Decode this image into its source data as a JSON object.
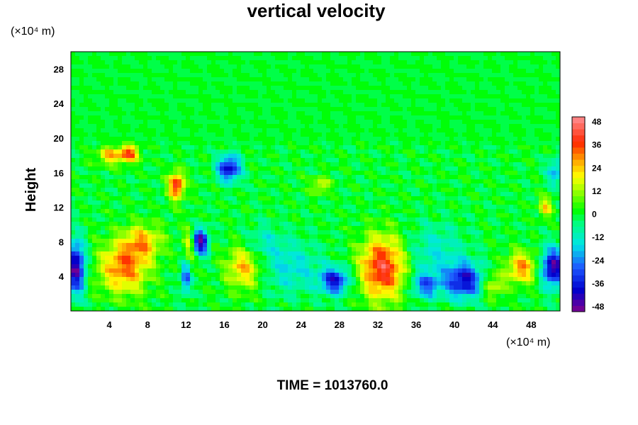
{
  "chart_data": {
    "type": "heatmap",
    "title": "vertical velocity",
    "ylabel": "Height",
    "x_unit": "(×10⁴ m)",
    "y_unit": "(×10⁴ m)",
    "x_ticks": [
      4,
      8,
      12,
      16,
      20,
      24,
      28,
      32,
      36,
      40,
      44,
      48
    ],
    "y_ticks": [
      4,
      8,
      12,
      16,
      20,
      24,
      28
    ],
    "xlim": [
      0,
      51
    ],
    "ylim": [
      0,
      30
    ],
    "colorbar": {
      "ticks": [
        48,
        36,
        24,
        12,
        0,
        -12,
        -24,
        -36,
        -48
      ],
      "range": [
        -48,
        48
      ],
      "levels": 32
    },
    "grid": false,
    "features": [
      {
        "x": 5.5,
        "y": 5,
        "value": 30,
        "sx": 2.5,
        "sy": 3.0
      },
      {
        "x": 7.5,
        "y": 8,
        "value": 22,
        "sx": 2,
        "sy": 2
      },
      {
        "x": 18,
        "y": 5,
        "value": 24,
        "sx": 1.8,
        "sy": 2.5
      },
      {
        "x": 32.5,
        "y": 5,
        "value": 40,
        "sx": 2.3,
        "sy": 3.6
      },
      {
        "x": 47,
        "y": 5,
        "value": 28,
        "sx": 1.5,
        "sy": 1.8
      },
      {
        "x": 44,
        "y": 3,
        "value": 18,
        "sx": 1.2,
        "sy": 1.5
      },
      {
        "x": 11,
        "y": 14.5,
        "value": 40,
        "sx": 0.8,
        "sy": 1.5
      },
      {
        "x": 6,
        "y": 18.2,
        "value": 36,
        "sx": 1,
        "sy": 1
      },
      {
        "x": 4,
        "y": 18,
        "value": 24,
        "sx": 1.2,
        "sy": 1
      },
      {
        "x": 12.3,
        "y": 7,
        "value": 18,
        "sx": 0.6,
        "sy": 2.5
      },
      {
        "x": 0.5,
        "y": 5,
        "value": -44,
        "sx": 1.0,
        "sy": 3.0
      },
      {
        "x": 13.5,
        "y": 8,
        "value": -44,
        "sx": 0.8,
        "sy": 1.5
      },
      {
        "x": 12,
        "y": 4,
        "value": -32,
        "sx": 0.5,
        "sy": 2
      },
      {
        "x": 16.5,
        "y": 16.5,
        "value": -38,
        "sx": 1.2,
        "sy": 1.5
      },
      {
        "x": 27.5,
        "y": 3.5,
        "value": -36,
        "sx": 1.5,
        "sy": 1.5
      },
      {
        "x": 41,
        "y": 3.5,
        "value": -38,
        "sx": 2,
        "sy": 2
      },
      {
        "x": 50.3,
        "y": 5,
        "value": -44,
        "sx": 1.2,
        "sy": 2.2
      },
      {
        "x": 37,
        "y": 3,
        "value": -26,
        "sx": 1.5,
        "sy": 1.5
      },
      {
        "x": 23,
        "y": 5,
        "value": -14,
        "sx": 3,
        "sy": 3
      },
      {
        "x": 38,
        "y": 7,
        "value": -12,
        "sx": 3,
        "sy": 3
      },
      {
        "x": 50.5,
        "y": 16,
        "value": -20,
        "sx": 0.8,
        "sy": 1.5
      },
      {
        "x": 49.5,
        "y": 12,
        "value": 20,
        "sx": 0.7,
        "sy": 1.2
      },
      {
        "x": 26,
        "y": 14.5,
        "value": 16,
        "sx": 1,
        "sy": 1
      },
      {
        "x": 20,
        "y": 8,
        "value": -10,
        "sx": 2,
        "sy": 2
      }
    ]
  },
  "footer": {
    "time_label": "TIME = 1013760.0"
  }
}
